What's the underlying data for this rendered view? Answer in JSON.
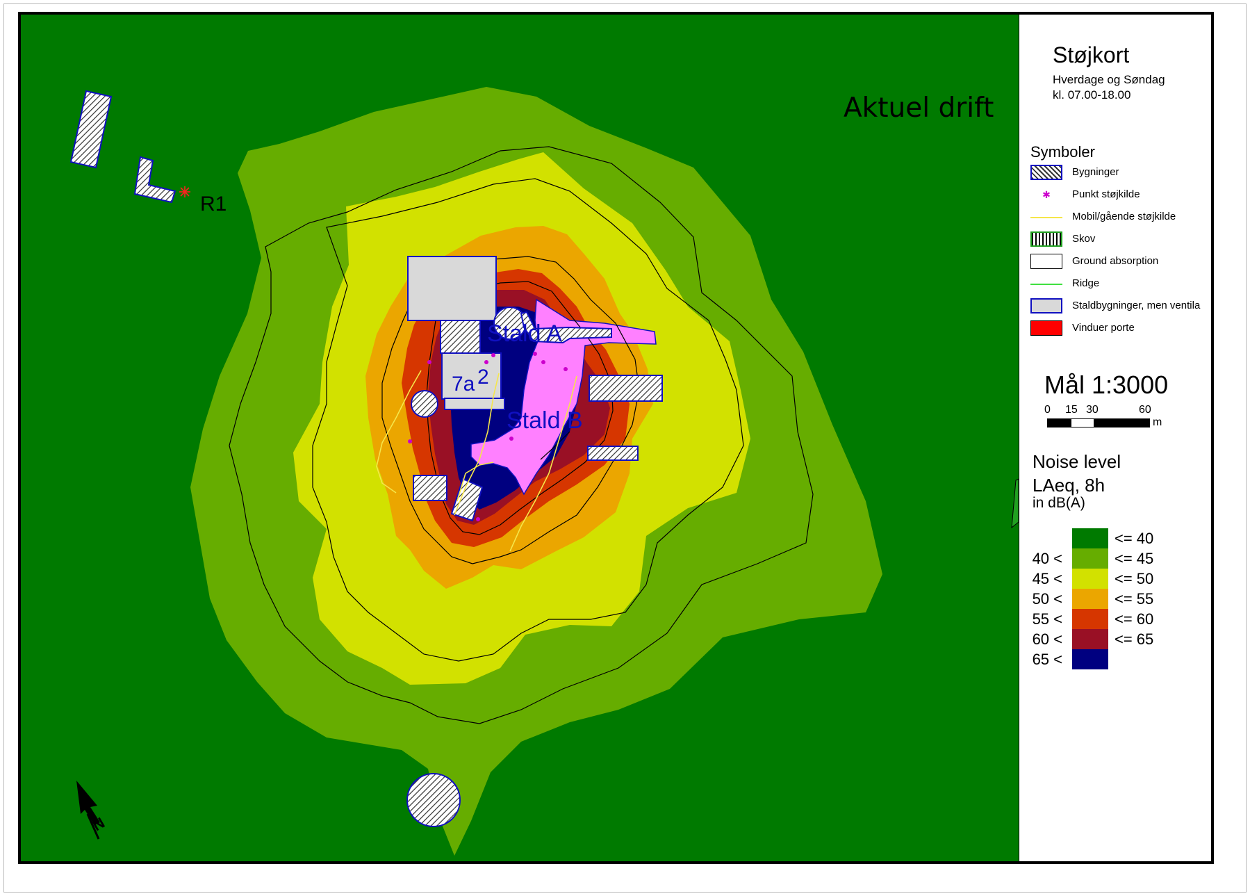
{
  "map": {
    "title": "Aktuel drift",
    "receiver_label": "R1",
    "building_labels": {
      "stald_a": "Stald A",
      "stald_b": "Stald B",
      "building_7a": "7a",
      "building_2": "2"
    },
    "north_arrow_label": "N",
    "colors": {
      "le_40": "#007a00",
      "40_45": "#66ad00",
      "45_50": "#d2e100",
      "50_55": "#eba600",
      "55_60": "#d63600",
      "60_65": "#991025",
      "gt_65": "#000080",
      "driveway": "#ff80ff",
      "building_fill": "#d9d9d9",
      "building_outline": "#1010c0"
    }
  },
  "legend": {
    "title": "Støjkort",
    "subtitle_days": "Hverdage og Søndag",
    "subtitle_hours": "kl. 07.00-18.00",
    "symbols_heading": "Symboler",
    "symbols": [
      {
        "icon": "hatched-building-icon",
        "label": "Bygninger"
      },
      {
        "icon": "point-source-icon",
        "label": "Punkt støjkilde"
      },
      {
        "icon": "mobile-source-line-icon",
        "label": "Mobil/gående støjkilde"
      },
      {
        "icon": "forest-icon",
        "label": "Skov"
      },
      {
        "icon": "ground-absorption-icon",
        "label": "Ground absorption"
      },
      {
        "icon": "ridge-line-icon",
        "label": "Ridge"
      },
      {
        "icon": "stable-building-icon",
        "label": "Staldbygninger, men ventila"
      },
      {
        "icon": "windows-doors-icon",
        "label": "Vinduer porte"
      }
    ],
    "scale": {
      "label": "Mål 1:3000",
      "ticks": [
        "0",
        "15",
        "30",
        "60"
      ],
      "unit": "m"
    },
    "noise": {
      "title_line1": "Noise level",
      "title_line2": "LAeq, 8h",
      "unit": "in dB(A)",
      "classes": [
        {
          "from": "",
          "to": "<= 40",
          "color": "#007a00"
        },
        {
          "from": "40 <",
          "to": "<= 45",
          "color": "#66ad00"
        },
        {
          "from": "45 <",
          "to": "<= 50",
          "color": "#d2e100"
        },
        {
          "from": "50 <",
          "to": "<= 55",
          "color": "#eba600"
        },
        {
          "from": "55 <",
          "to": "<= 60",
          "color": "#d63600"
        },
        {
          "from": "60 <",
          "to": "<= 65",
          "color": "#991025"
        },
        {
          "from": "65 <",
          "to": "",
          "color": "#000080"
        }
      ]
    }
  }
}
